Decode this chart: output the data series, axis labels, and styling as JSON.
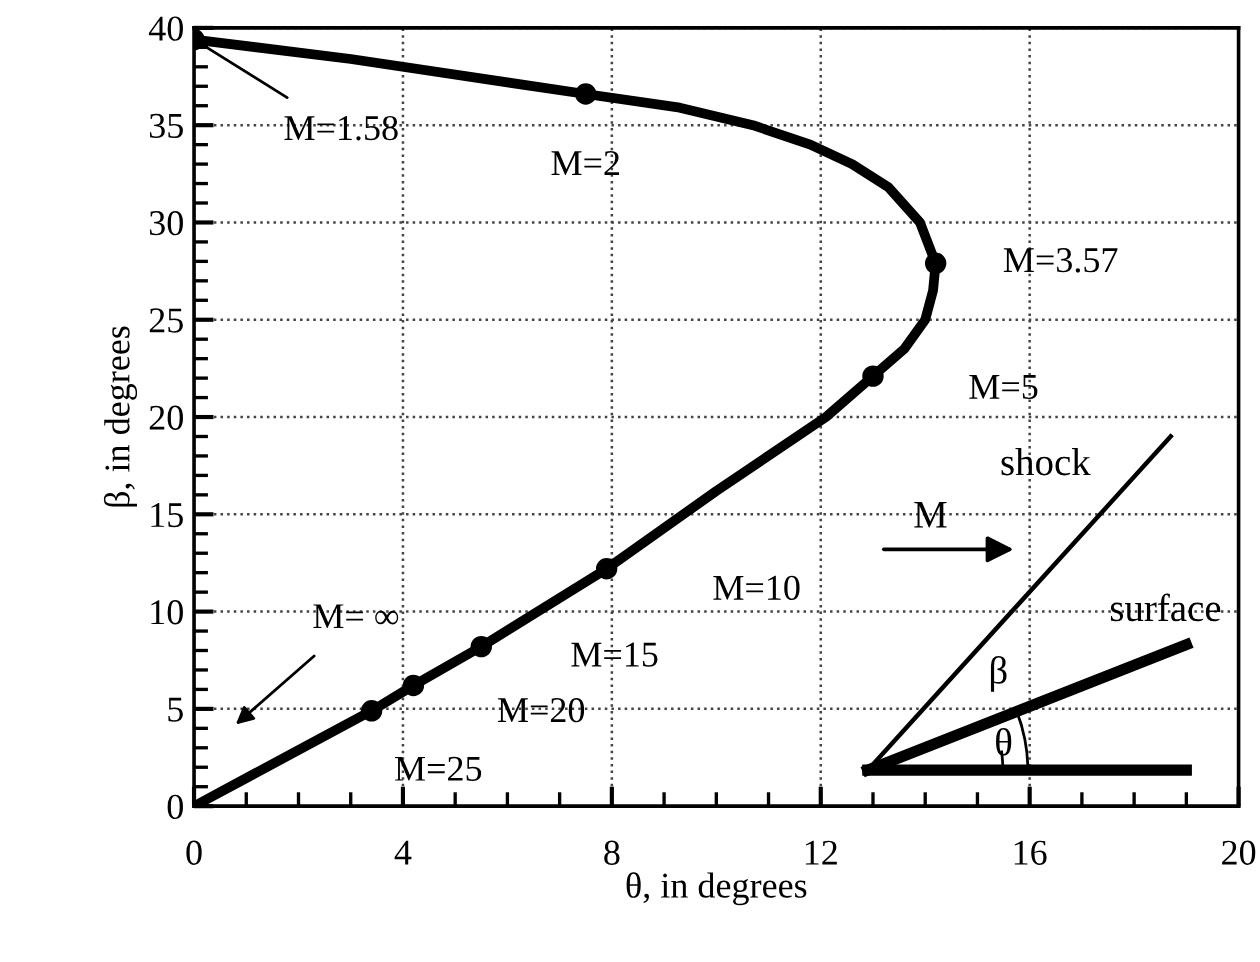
{
  "chart_data": {
    "type": "line",
    "xlabel": "θ, in degrees",
    "ylabel": "β, in degrees",
    "xlim": [
      0,
      20
    ],
    "ylim": [
      0,
      40
    ],
    "xticks": [
      0,
      4,
      8,
      12,
      16,
      20
    ],
    "yticks": [
      0,
      5,
      10,
      15,
      20,
      25,
      30,
      35,
      40
    ],
    "grid": true,
    "series": [
      {
        "color": "#000000",
        "marker": "none",
        "x": [
          0,
          3,
          6,
          7.5,
          9.3,
          10.7,
          11.8,
          12.6,
          13.3,
          13.9,
          14.2,
          14.15,
          14.0,
          13.6,
          13.0,
          12.1,
          10.0,
          7.9,
          5.5,
          4.2,
          3.4,
          0
        ],
        "values": [
          39.4,
          38.4,
          37.2,
          36.6,
          35.9,
          35,
          34,
          33,
          31.8,
          30,
          27.9,
          26.5,
          25,
          23.5,
          22.1,
          20,
          16.2,
          12.2,
          8.2,
          6.2,
          4.9,
          0
        ]
      },
      {
        "type": "scatter",
        "color": "#000000",
        "marker": "circle",
        "x": [
          0,
          7.5,
          14.2,
          13.0,
          7.9,
          5.5,
          4.2,
          3.4
        ],
        "values": [
          39.4,
          36.6,
          27.9,
          22.1,
          12.2,
          8.2,
          6.2,
          4.9
        ]
      }
    ],
    "annotations": [
      {
        "text": "M=1.58",
        "x": 0,
        "y": 39.4
      },
      {
        "text": "M=2",
        "x": 7.5,
        "y": 36.6
      },
      {
        "text": "M=3.57",
        "x": 14.2,
        "y": 27.9
      },
      {
        "text": "M=5",
        "x": 13.0,
        "y": 22.1
      },
      {
        "text": "M=10",
        "x": 7.9,
        "y": 12.2
      },
      {
        "text": "M=15",
        "x": 5.5,
        "y": 8.2
      },
      {
        "text": "M=20",
        "x": 4.2,
        "y": 6.2
      },
      {
        "text": "M=25",
        "x": 3.4,
        "y": 4.9
      },
      "M= ∞",
      "shock",
      "M",
      "surface",
      "β",
      "θ"
    ]
  }
}
